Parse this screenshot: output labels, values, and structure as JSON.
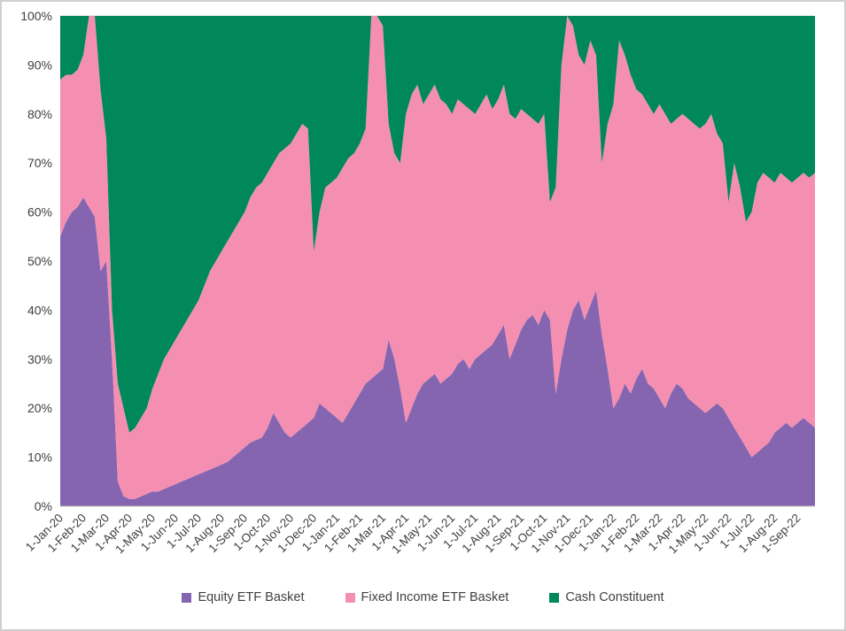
{
  "chart_data": {
    "type": "area",
    "stacked_percent": true,
    "title": "",
    "xlabel": "",
    "ylabel": "",
    "ylim": [
      0,
      100
    ],
    "grid": "horizontal",
    "legend_position": "bottom",
    "y_tick_labels": [
      "0%",
      "10%",
      "20%",
      "30%",
      "40%",
      "50%",
      "60%",
      "70%",
      "80%",
      "90%",
      "100%"
    ],
    "x_tick_labels": [
      "1-Jan-20",
      "1-Feb-20",
      "1-Mar-20",
      "1-Apr-20",
      "1-May-20",
      "1-Jun-20",
      "1-Jul-20",
      "1-Aug-20",
      "1-Sep-20",
      "1-Oct-20",
      "1-Nov-20",
      "1-Dec-20",
      "1-Jan-21",
      "1-Feb-21",
      "1-Mar-21",
      "1-Apr-21",
      "1-May-21",
      "1-Jun-21",
      "1-Jul-21",
      "1-Aug-21",
      "1-Sep-21",
      "1-Oct-21",
      "1-Nov-21",
      "1-Dec-21",
      "1-Jan-22",
      "1-Feb-22",
      "1-Mar-22",
      "1-Apr-22",
      "1-May-22",
      "1-Jun-22",
      "1-Jul-22",
      "1-Aug-22",
      "1-Sep-22"
    ],
    "x_ticks_every_n_points": 4,
    "colors": {
      "grid": "#d9d9d9",
      "axis": "#bfbfbf",
      "tick_text": "#404040"
    },
    "series": [
      {
        "name": "Equity ETF Basket",
        "color": "#8565b0",
        "values": [
          55,
          58,
          60,
          61,
          63,
          61,
          59,
          48,
          50,
          30,
          5,
          2,
          1.5,
          1.5,
          2,
          2.5,
          3,
          3,
          3.5,
          4,
          4.5,
          5,
          5.5,
          6,
          6.5,
          7,
          7.5,
          8,
          8.5,
          9,
          10,
          11,
          12,
          13,
          13.5,
          14,
          16,
          19,
          17,
          15,
          14,
          15,
          16,
          17,
          18,
          21,
          20,
          19,
          18,
          17,
          19,
          21,
          23,
          25,
          26,
          27,
          28,
          34,
          30,
          24,
          17,
          20,
          23,
          25,
          26,
          27,
          25,
          26,
          27,
          29,
          30,
          28,
          30,
          31,
          32,
          33,
          35,
          37,
          30,
          33,
          36,
          38,
          39,
          37,
          40,
          38,
          23,
          30,
          36,
          40,
          42,
          38,
          41,
          44,
          35,
          28,
          20,
          22,
          25,
          23,
          26,
          28,
          25,
          24,
          22,
          20,
          23,
          25,
          24,
          22,
          21,
          20,
          19,
          20,
          21,
          20,
          18,
          16,
          14,
          12,
          10,
          11,
          12,
          13,
          15,
          16,
          17,
          16,
          17,
          18,
          17,
          16
        ]
      },
      {
        "name": "Fixed Income ETF Basket",
        "color": "#f48fb1",
        "values": [
          32,
          30,
          28,
          28,
          29,
          39,
          41,
          37,
          25,
          10,
          20,
          18,
          13.5,
          14.5,
          16,
          17.5,
          21,
          24,
          26.5,
          28,
          29.5,
          31,
          32.5,
          34,
          35.5,
          38,
          40.5,
          42,
          43.5,
          45,
          46,
          47,
          48,
          50,
          51.5,
          52,
          52,
          51,
          55,
          58,
          60,
          61,
          62,
          60,
          34,
          39,
          45,
          47,
          49,
          52,
          52,
          51,
          51,
          52,
          74,
          73,
          70,
          44,
          42,
          46,
          63,
          64,
          63,
          57,
          58,
          59,
          58,
          56,
          53,
          54,
          52,
          53,
          50,
          51,
          52,
          48,
          48,
          49,
          50,
          46,
          45,
          42,
          40,
          41,
          40,
          24,
          42,
          60,
          64,
          58,
          50,
          52,
          54,
          48,
          35,
          50,
          62,
          73,
          67,
          65,
          59,
          56,
          57,
          56,
          60,
          60,
          55,
          54,
          56,
          57,
          57,
          57,
          59,
          60,
          55,
          54,
          44,
          54,
          51,
          46,
          50,
          55,
          56,
          54,
          51,
          52,
          50,
          50,
          50,
          50,
          50,
          52
        ]
      },
      {
        "name": "Cash Constituent",
        "color": "#00875a",
        "values": [
          13,
          12,
          12,
          11,
          8,
          0,
          0,
          15,
          25,
          60,
          75,
          80,
          85,
          84,
          82,
          80,
          76,
          73,
          70,
          68,
          66,
          64,
          62,
          60,
          58,
          55,
          52,
          50,
          48,
          46,
          44,
          42,
          40,
          37,
          35,
          34,
          32,
          30,
          28,
          27,
          26,
          24,
          22,
          23,
          48,
          40,
          35,
          34,
          33,
          31,
          29,
          28,
          26,
          23,
          0,
          0,
          2,
          22,
          28,
          30,
          20,
          16,
          14,
          18,
          16,
          14,
          17,
          18,
          20,
          17,
          18,
          19,
          20,
          18,
          16,
          19,
          17,
          14,
          20,
          21,
          19,
          20,
          21,
          22,
          20,
          38,
          35,
          10,
          0,
          2,
          8,
          10,
          5,
          8,
          30,
          22,
          18,
          5,
          8,
          12,
          15,
          16,
          18,
          20,
          18,
          20,
          22,
          21,
          20,
          21,
          22,
          23,
          22,
          20,
          24,
          26,
          38,
          30,
          35,
          42,
          40,
          34,
          32,
          33,
          34,
          32,
          33,
          34,
          33,
          32,
          33,
          32
        ]
      }
    ]
  }
}
